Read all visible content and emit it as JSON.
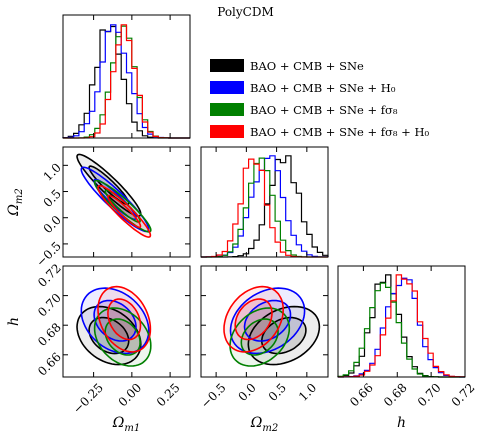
{
  "title": "PolyCDM",
  "chart_data": {
    "type": "corner",
    "parameters": [
      {
        "key": "om1",
        "label": "Ω_m1",
        "range": [
          -0.45,
          0.38
        ],
        "ticks": [
          -0.25,
          0.0,
          0.25
        ],
        "tick_labels": [
          "−0.25",
          "0.00",
          "0.25"
        ]
      },
      {
        "key": "om2",
        "label": "Ω_m2",
        "range": [
          -0.75,
          1.35
        ],
        "ticks": [
          -0.5,
          0.0,
          0.5,
          1.0
        ],
        "tick_labels": [
          "−0.5",
          "0.0",
          "0.5",
          "1.0"
        ]
      },
      {
        "key": "h",
        "label": "h",
        "range": [
          0.645,
          0.72
        ],
        "ticks": [
          0.66,
          0.68,
          0.7,
          0.72
        ],
        "tick_labels": [
          "0.66",
          "0.68",
          "0.70",
          "0.72"
        ]
      }
    ],
    "y_axis_ticks": {
      "om2": {
        "ticks": [
          -0.5,
          0.0,
          0.5,
          1.0
        ],
        "tick_labels": [
          "−0.5",
          "0.0",
          "0.5",
          "1.0"
        ]
      },
      "h": {
        "ticks": [
          0.66,
          0.68,
          0.7,
          0.72
        ],
        "tick_labels": [
          "0.66",
          "0.68",
          "0.70",
          "0.72"
        ]
      }
    },
    "series": [
      {
        "name": "BAO + CMB + SNe",
        "color": "#000000",
        "mean": {
          "om1": -0.15,
          "om2": 0.62,
          "h": 0.673
        },
        "std": {
          "om1": 0.085,
          "om2": 0.24,
          "h": 0.008
        },
        "corr": {
          "om1_om2": -0.93,
          "om1_h": -0.3,
          "om2_h": 0.3
        }
      },
      {
        "name": "BAO + CMB + SNe + H₀",
        "color": "#0000ff",
        "mean": {
          "om1": -0.11,
          "om2": 0.35,
          "h": 0.683
        },
        "std": {
          "om1": 0.09,
          "om2": 0.25,
          "h": 0.009
        },
        "corr": {
          "om1_om2": -0.93,
          "om1_h": -0.3,
          "om2_h": 0.3
        }
      },
      {
        "name": "BAO + CMB + SNe + fσ₈",
        "color": "#008000",
        "mean": {
          "om1": -0.06,
          "om2": 0.22,
          "h": 0.672
        },
        "std": {
          "om1": 0.075,
          "om2": 0.2,
          "h": 0.008
        },
        "corr": {
          "om1_om2": -0.93,
          "om1_h": -0.3,
          "om2_h": 0.3
        }
      },
      {
        "name": "BAO + CMB + SNe + fσ₈ + H₀",
        "color": "#ff0000",
        "mean": {
          "om1": -0.05,
          "om2": 0.12,
          "h": 0.684
        },
        "std": {
          "om1": 0.07,
          "om2": 0.2,
          "h": 0.009
        },
        "corr": {
          "om1_om2": -0.93,
          "om1_h": -0.3,
          "om2_h": 0.3
        }
      }
    ],
    "legend_position": "top-right",
    "grid": false
  }
}
